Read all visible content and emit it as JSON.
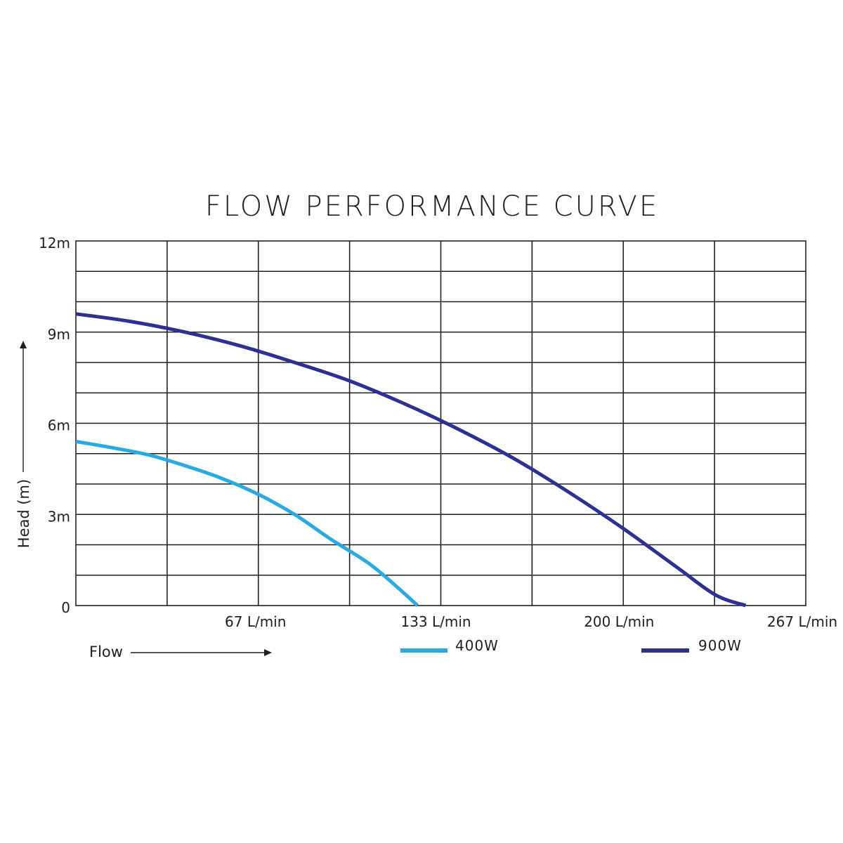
{
  "chart_data": {
    "type": "line",
    "title": "FLOW PERFORMANCE CURVE",
    "xlabel": "Flow",
    "ylabel": "Head (m)",
    "xlim": [
      0,
      267
    ],
    "ylim": [
      0,
      12
    ],
    "x_ticks": [
      {
        "value": 67,
        "label": "67 L/min"
      },
      {
        "value": 133,
        "label": "133 L/min"
      },
      {
        "value": 200,
        "label": "200 L/min"
      },
      {
        "value": 267,
        "label": "267 L/min"
      }
    ],
    "y_ticks": [
      {
        "value": 0,
        "label": "0"
      },
      {
        "value": 3,
        "label": "3m"
      },
      {
        "value": 6,
        "label": "6m"
      },
      {
        "value": 9,
        "label": "9m"
      },
      {
        "value": 12,
        "label": "12m"
      }
    ],
    "grid": true,
    "x_grid_step": 33.375,
    "y_grid_step": 1,
    "legend_position": "bottom",
    "series": [
      {
        "name": "400W",
        "color": "#29aae1",
        "points": [
          [
            0,
            5.4
          ],
          [
            13,
            5.2
          ],
          [
            27,
            4.95
          ],
          [
            40,
            4.6
          ],
          [
            53,
            4.2
          ],
          [
            67,
            3.65
          ],
          [
            80,
            3.0
          ],
          [
            93,
            2.2
          ],
          [
            107,
            1.4
          ],
          [
            117,
            0.65
          ],
          [
            125,
            0
          ]
        ]
      },
      {
        "name": "900W",
        "color": "#2e3192",
        "points": [
          [
            0,
            9.6
          ],
          [
            20,
            9.35
          ],
          [
            40,
            9.0
          ],
          [
            60,
            8.55
          ],
          [
            80,
            8.0
          ],
          [
            100,
            7.4
          ],
          [
            120,
            6.65
          ],
          [
            140,
            5.8
          ],
          [
            160,
            4.85
          ],
          [
            180,
            3.75
          ],
          [
            200,
            2.55
          ],
          [
            220,
            1.25
          ],
          [
            234,
            0.35
          ],
          [
            245,
            0
          ]
        ]
      }
    ]
  }
}
